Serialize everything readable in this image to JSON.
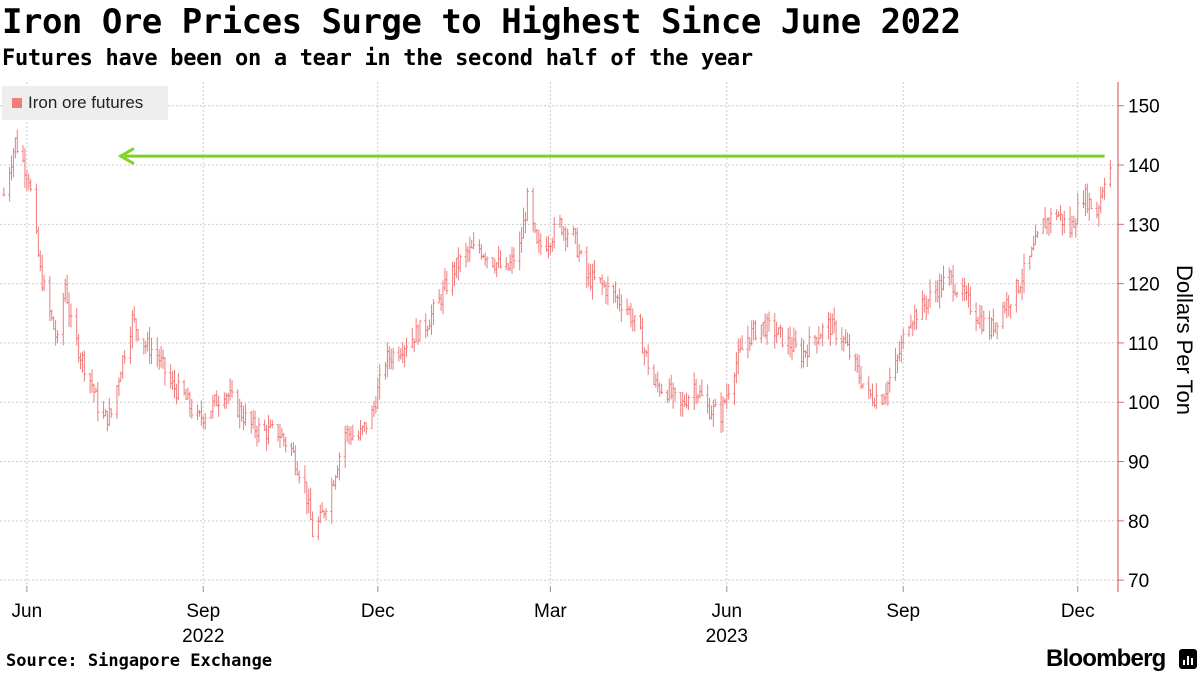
{
  "title": "Iron Ore Prices Surge to Highest Since June 2022",
  "subtitle": "Futures have been on a tear in the second half of the year",
  "source": "Source: Singapore Exchange",
  "brand": "Bloomberg",
  "colors": {
    "series": "#f07c7c",
    "arrow": "#7ed321",
    "grid": "#cccccc",
    "axis": "#e06666"
  },
  "chart_data": {
    "type": "line",
    "style": "OHLC price bars (daily)",
    "title": "Iron Ore Prices Surge to Highest Since June 2022",
    "subtitle": "Futures have been on a tear in the second half of the year",
    "xlabel": "",
    "ylabel": "Dollars Per Ton",
    "ylim": [
      68,
      154
    ],
    "yticks": [
      70,
      80,
      90,
      100,
      110,
      120,
      130,
      140,
      150
    ],
    "y_axis_side": "right",
    "grid": true,
    "legend": {
      "position": "top-left",
      "entries": [
        "Iron ore futures"
      ]
    },
    "x_ticks": [
      {
        "date": "2022-06-01",
        "label": "Jun"
      },
      {
        "date": "2022-09-01",
        "label": "Sep"
      },
      {
        "date": "2022-12-01",
        "label": "Dec"
      },
      {
        "date": "2023-03-01",
        "label": "Mar"
      },
      {
        "date": "2023-06-01",
        "label": "Jun"
      },
      {
        "date": "2023-09-01",
        "label": "Sep"
      },
      {
        "date": "2023-12-01",
        "label": "Dec"
      }
    ],
    "x_year_labels": [
      {
        "date": "2022-09-01",
        "label": "2022"
      },
      {
        "date": "2023-06-01",
        "label": "2023"
      }
    ],
    "xlim": [
      "2022-05-18",
      "2023-12-22"
    ],
    "series": [
      {
        "name": "Iron ore futures",
        "points": [
          [
            "2022-05-20",
            135
          ],
          [
            "2022-05-26",
            144
          ],
          [
            "2022-06-02",
            138
          ],
          [
            "2022-06-08",
            122
          ],
          [
            "2022-06-13",
            115
          ],
          [
            "2022-06-17",
            110
          ],
          [
            "2022-06-21",
            120
          ],
          [
            "2022-06-24",
            113
          ],
          [
            "2022-06-29",
            108
          ],
          [
            "2022-07-05",
            103
          ],
          [
            "2022-07-10",
            97
          ],
          [
            "2022-07-15",
            98
          ],
          [
            "2022-07-20",
            106
          ],
          [
            "2022-07-26",
            114
          ],
          [
            "2022-08-01",
            110
          ],
          [
            "2022-08-08",
            108
          ],
          [
            "2022-08-15",
            103
          ],
          [
            "2022-08-22",
            101
          ],
          [
            "2022-08-29",
            97
          ],
          [
            "2022-09-05",
            99
          ],
          [
            "2022-09-12",
            102
          ],
          [
            "2022-09-19",
            99
          ],
          [
            "2022-09-26",
            96
          ],
          [
            "2022-10-03",
            95
          ],
          [
            "2022-10-10",
            95
          ],
          [
            "2022-10-17",
            92
          ],
          [
            "2022-10-24",
            86
          ],
          [
            "2022-10-28",
            78
          ],
          [
            "2022-11-01",
            80
          ],
          [
            "2022-11-07",
            86
          ],
          [
            "2022-11-14",
            95
          ],
          [
            "2022-11-21",
            94
          ],
          [
            "2022-11-28",
            98
          ],
          [
            "2022-12-05",
            107
          ],
          [
            "2022-12-12",
            109
          ],
          [
            "2022-12-19",
            111
          ],
          [
            "2022-12-26",
            113
          ],
          [
            "2023-01-02",
            117
          ],
          [
            "2023-01-09",
            122
          ],
          [
            "2023-01-16",
            125
          ],
          [
            "2023-01-23",
            126
          ],
          [
            "2023-01-30",
            124
          ],
          [
            "2023-02-06",
            122
          ],
          [
            "2023-02-13",
            126
          ],
          [
            "2023-02-17",
            134
          ],
          [
            "2023-02-22",
            126
          ],
          [
            "2023-02-27",
            127
          ],
          [
            "2023-03-06",
            130
          ],
          [
            "2023-03-13",
            128
          ],
          [
            "2023-03-20",
            121
          ],
          [
            "2023-03-27",
            120
          ],
          [
            "2023-04-03",
            118
          ],
          [
            "2023-04-10",
            116
          ],
          [
            "2023-04-17",
            111
          ],
          [
            "2023-04-24",
            103
          ],
          [
            "2023-05-01",
            102
          ],
          [
            "2023-05-08",
            99
          ],
          [
            "2023-05-15",
            103
          ],
          [
            "2023-05-22",
            99
          ],
          [
            "2023-05-29",
            98
          ],
          [
            "2023-06-05",
            106
          ],
          [
            "2023-06-12",
            111
          ],
          [
            "2023-06-19",
            113
          ],
          [
            "2023-06-26",
            112
          ],
          [
            "2023-07-03",
            110
          ],
          [
            "2023-07-10",
            108
          ],
          [
            "2023-07-17",
            111
          ],
          [
            "2023-07-24",
            113
          ],
          [
            "2023-07-31",
            111
          ],
          [
            "2023-08-07",
            106
          ],
          [
            "2023-08-14",
            101
          ],
          [
            "2023-08-21",
            101
          ],
          [
            "2023-08-28",
            106
          ],
          [
            "2023-09-04",
            114
          ],
          [
            "2023-09-11",
            116
          ],
          [
            "2023-09-18",
            119
          ],
          [
            "2023-09-25",
            121
          ],
          [
            "2023-10-02",
            118
          ],
          [
            "2023-10-09",
            115
          ],
          [
            "2023-10-16",
            112
          ],
          [
            "2023-10-23",
            116
          ],
          [
            "2023-10-30",
            119
          ],
          [
            "2023-11-06",
            124
          ],
          [
            "2023-11-13",
            130
          ],
          [
            "2023-11-20",
            132
          ],
          [
            "2023-11-27",
            129
          ],
          [
            "2023-12-04",
            135
          ],
          [
            "2023-12-11",
            132
          ],
          [
            "2023-12-15",
            138
          ],
          [
            "2023-12-19",
            140
          ]
        ]
      }
    ],
    "annotations": [
      {
        "type": "arrow",
        "from_date": "2023-12-15",
        "to_date": "2022-07-20",
        "y": 141.5,
        "color": "#7ed321"
      }
    ]
  }
}
